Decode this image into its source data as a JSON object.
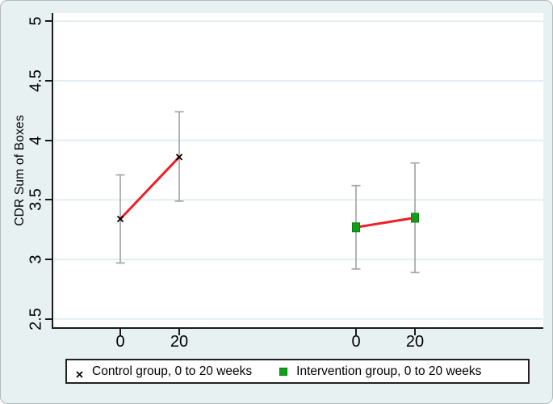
{
  "figure": {
    "y_axis_title": "CDR Sum of Boxes",
    "legend": {
      "control_label": "Control group, 0 to 20 weeks",
      "intervention_label": "Intervention group, 0 to 20 weeks"
    }
  },
  "colors": {
    "background": "#e8f1f2",
    "plot_background": "#ffffff",
    "gridline": "#e2edf1",
    "axis": "#1a1a1a",
    "error_bar": "#a6a6a6",
    "trend_line_red": "#ee1f27",
    "control_marker_black": "#000000",
    "intervention_marker_green": "#0da11a"
  },
  "chart_data": {
    "type": "line",
    "title": "",
    "xlabel": "",
    "ylabel": "CDR Sum of Boxes",
    "ylim": [
      2.5,
      5
    ],
    "y_ticks": [
      5,
      4.5,
      4,
      3.5,
      3,
      2.5
    ],
    "x_tick_labels": [
      "0",
      "20",
      "0",
      "20"
    ],
    "grid": "horizontal",
    "legend_position": "bottom",
    "error_bars": "95% CI",
    "series": [
      {
        "name": "Control group, 0 to 20 weeks",
        "marker": "x",
        "marker_color": "#000000",
        "line_color": "#ee1f27",
        "points": [
          {
            "week": 0,
            "mean": 3.34,
            "ci_low": 2.97,
            "ci_high": 3.71
          },
          {
            "week": 20,
            "mean": 3.86,
            "ci_low": 3.49,
            "ci_high": 4.24
          }
        ]
      },
      {
        "name": "Intervention group, 0 to 20 weeks",
        "marker": "square",
        "marker_color": "#0da11a",
        "line_color": "#ee1f27",
        "points": [
          {
            "week": 0,
            "mean": 3.27,
            "ci_low": 2.92,
            "ci_high": 3.62
          },
          {
            "week": 20,
            "mean": 3.35,
            "ci_low": 2.89,
            "ci_high": 3.81
          }
        ]
      }
    ]
  }
}
